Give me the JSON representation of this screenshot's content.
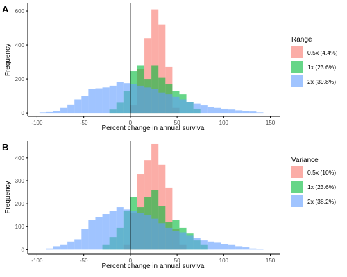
{
  "colors": {
    "red": "#F8766D",
    "green": "#00BA38",
    "blue": "#619CFF",
    "axis": "#000000",
    "tick_text": "#4D4D4D"
  },
  "chart_data": [
    {
      "type": "bar",
      "panel_label": "A",
      "title": "",
      "xlabel": "Percent change in annual survival",
      "ylabel": "Frequency",
      "xlim": [
        -110,
        160
      ],
      "ylim": [
        -20,
        645
      ],
      "xticks": [
        -100,
        -50,
        0,
        50,
        100,
        150
      ],
      "yticks": [
        0,
        200,
        400,
        600
      ],
      "vline": 0,
      "bin_width": 7.5,
      "bin_start": -100,
      "legend": {
        "title": "Range",
        "position": "right"
      },
      "series": [
        {
          "name": "0.5x (4.4%)",
          "color": "#F8766D",
          "values": [
            0,
            0,
            0,
            0,
            0,
            0,
            0,
            0,
            0,
            0,
            0,
            0,
            0,
            0,
            0,
            0,
            0,
            0,
            0,
            0,
            0,
            0,
            0,
            0,
            0,
            0,
            0,
            0,
            0,
            0,
            0,
            0,
            0,
            0,
            0,
            0,
            0
          ],
          "sparse": [
            [
              0,
              45
            ],
            [
              7.5,
              260
            ],
            [
              15,
              440
            ],
            [
              22.5,
              610
            ],
            [
              30,
              520
            ],
            [
              37.5,
              270
            ],
            [
              45,
              30
            ]
          ]
        },
        {
          "name": "1x (23.6%)",
          "color": "#00BA38",
          "sparse": [
            [
              -22.5,
              20
            ],
            [
              -15,
              60
            ],
            [
              -7.5,
              130
            ],
            [
              0,
              245
            ],
            [
              7.5,
              280
            ],
            [
              15,
              200
            ],
            [
              22.5,
              280
            ],
            [
              30,
              210
            ],
            [
              37.5,
              170
            ],
            [
              45,
              130
            ],
            [
              52.5,
              110
            ],
            [
              60,
              65
            ],
            [
              67.5,
              25
            ]
          ]
        },
        {
          "name": "2x (39.8%)",
          "color": "#619CFF",
          "sparse": [
            [
              -97.5,
              3
            ],
            [
              -90,
              5
            ],
            [
              -82.5,
              12
            ],
            [
              -75,
              30
            ],
            [
              -67.5,
              50
            ],
            [
              -60,
              80
            ],
            [
              -52.5,
              100
            ],
            [
              -45,
              140
            ],
            [
              -37.5,
              145
            ],
            [
              -30,
              150
            ],
            [
              -22.5,
              160
            ],
            [
              -15,
              180
            ],
            [
              -7.5,
              175
            ],
            [
              0,
              170
            ],
            [
              7.5,
              160
            ],
            [
              15,
              150
            ],
            [
              22.5,
              140
            ],
            [
              30,
              120
            ],
            [
              37.5,
              110
            ],
            [
              45,
              95
            ],
            [
              52.5,
              80
            ],
            [
              60,
              65
            ],
            [
              67.5,
              55
            ],
            [
              75,
              45
            ],
            [
              82.5,
              35
            ],
            [
              90,
              30
            ],
            [
              97.5,
              25
            ],
            [
              105,
              20
            ],
            [
              112.5,
              15
            ],
            [
              120,
              12
            ],
            [
              127.5,
              8
            ],
            [
              135,
              3
            ]
          ]
        }
      ]
    },
    {
      "type": "bar",
      "panel_label": "B",
      "title": "",
      "xlabel": "Percent change in annual survival",
      "ylabel": "Frequency",
      "xlim": [
        -110,
        160
      ],
      "ylim": [
        -20,
        475
      ],
      "xticks": [
        -100,
        -50,
        0,
        50,
        100,
        150
      ],
      "yticks": [
        0,
        100,
        200,
        300,
        400
      ],
      "vline": 0,
      "bin_width": 7.5,
      "bin_start": -100,
      "legend": {
        "title": "Variance",
        "position": "right"
      },
      "series": [
        {
          "name": "0.5x (10%)",
          "color": "#F8766D",
          "sparse": [
            [
              -7.5,
              20
            ],
            [
              0,
              160
            ],
            [
              7.5,
              330
            ],
            [
              15,
              390
            ],
            [
              22.5,
              460
            ],
            [
              30,
              370
            ],
            [
              37.5,
              270
            ],
            [
              45,
              90
            ],
            [
              52.5,
              20
            ]
          ]
        },
        {
          "name": "1x (23.6%)",
          "color": "#00BA38",
          "sparse": [
            [
              -30,
              20
            ],
            [
              -22.5,
              55
            ],
            [
              -15,
              95
            ],
            [
              -7.5,
              170
            ],
            [
              0,
              230
            ],
            [
              7.5,
              185
            ],
            [
              15,
              230
            ],
            [
              22.5,
              260
            ],
            [
              30,
              190
            ],
            [
              37.5,
              120
            ],
            [
              45,
              130
            ],
            [
              52.5,
              95
            ],
            [
              60,
              70
            ],
            [
              67.5,
              40
            ],
            [
              75,
              20
            ]
          ]
        },
        {
          "name": "2x (38.2%)",
          "color": "#619CFF",
          "sparse": [
            [
              -90,
              5
            ],
            [
              -82.5,
              15
            ],
            [
              -75,
              20
            ],
            [
              -67.5,
              35
            ],
            [
              -60,
              45
            ],
            [
              -52.5,
              90
            ],
            [
              -45,
              130
            ],
            [
              -37.5,
              140
            ],
            [
              -30,
              155
            ],
            [
              -22.5,
              170
            ],
            [
              -15,
              185
            ],
            [
              -7.5,
              175
            ],
            [
              0,
              170
            ],
            [
              7.5,
              160
            ],
            [
              15,
              150
            ],
            [
              22.5,
              135
            ],
            [
              30,
              115
            ],
            [
              37.5,
              95
            ],
            [
              45,
              80
            ],
            [
              52.5,
              75
            ],
            [
              60,
              60
            ],
            [
              67.5,
              50
            ],
            [
              75,
              40
            ],
            [
              82.5,
              35
            ],
            [
              90,
              30
            ],
            [
              97.5,
              25
            ],
            [
              105,
              20
            ],
            [
              112.5,
              15
            ],
            [
              120,
              10
            ],
            [
              127.5,
              5
            ],
            [
              135,
              3
            ]
          ]
        }
      ]
    }
  ]
}
